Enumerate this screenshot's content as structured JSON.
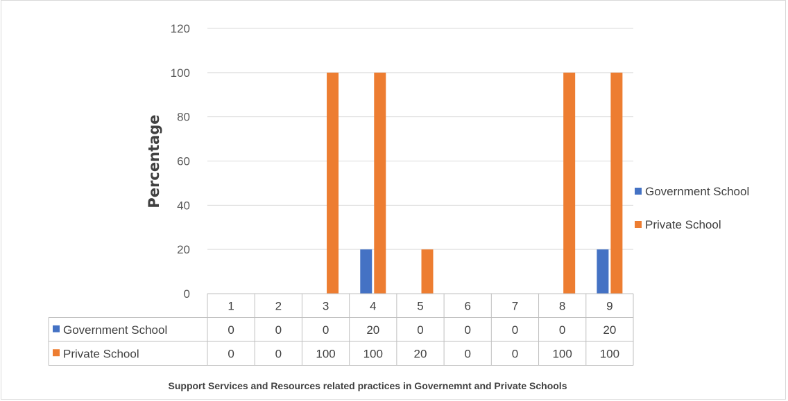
{
  "chart_data": {
    "type": "bar",
    "title": "Support Services and Resources related practices in Governemnt and Private Schools",
    "ylabel": "Percentage",
    "xlabel": "",
    "categories": [
      "1",
      "2",
      "3",
      "4",
      "5",
      "6",
      "7",
      "8",
      "9"
    ],
    "ylim": [
      0,
      120
    ],
    "yticks": [
      0,
      20,
      40,
      60,
      80,
      100,
      120
    ],
    "grid": true,
    "legend_position": "right",
    "data_table": true,
    "series": [
      {
        "name": "Government School",
        "color": "#4472c4",
        "values": [
          0,
          0,
          0,
          20,
          0,
          0,
          0,
          0,
          20
        ]
      },
      {
        "name": "Private School",
        "color": "#ed7d31",
        "values": [
          0,
          0,
          100,
          100,
          20,
          0,
          0,
          100,
          100
        ]
      }
    ]
  }
}
